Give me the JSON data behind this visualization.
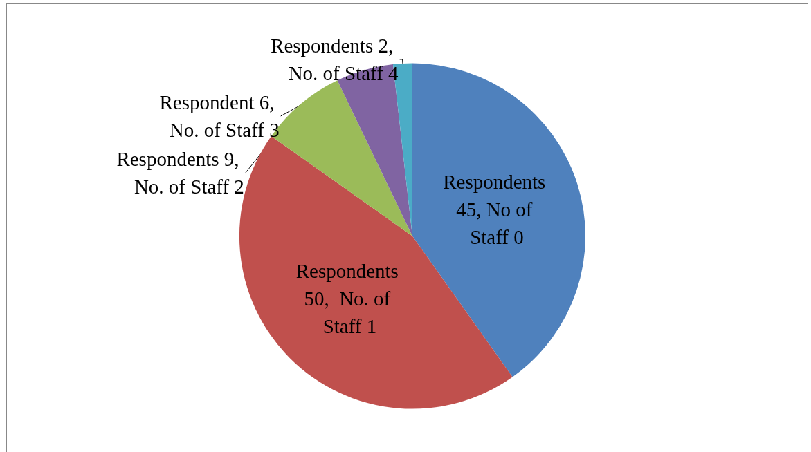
{
  "chart_data": {
    "type": "pie",
    "categories": [
      "Respondents 45, No of Staff 0",
      "Respondents 50,  No. of Staff 1",
      "Respondents 9, No. of Staff 2",
      "Respondent 6, No. of Staff 3",
      "Respondents 2, No. of Staff 4"
    ],
    "values": [
      45,
      50,
      9,
      6,
      2
    ],
    "colors": [
      "#4f81bd",
      "#c0504d",
      "#9bbb59",
      "#8064a2",
      "#4bacc6"
    ],
    "legend": false
  }
}
